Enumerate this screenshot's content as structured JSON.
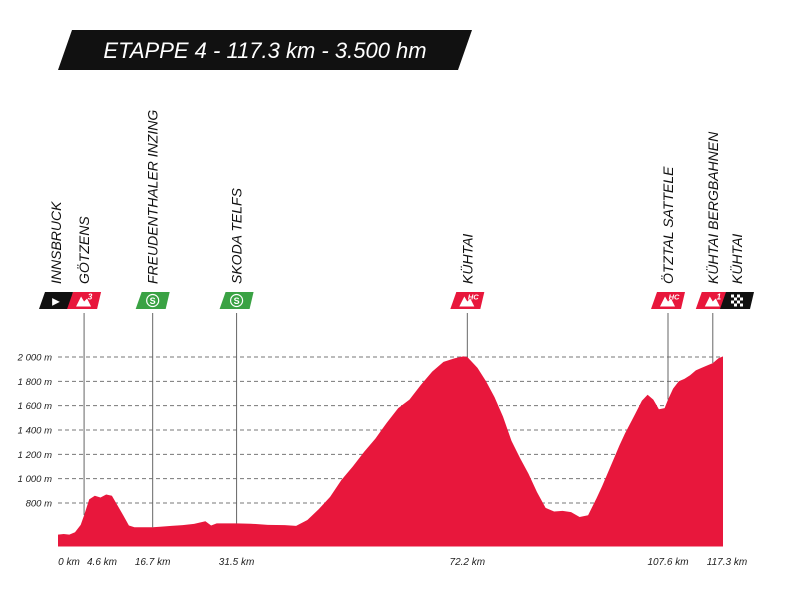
{
  "banner": {
    "text": "ETAPPE 4 - 117.3 km - 3.500 hm",
    "bg_color": "#111111",
    "text_color": "#ffffff"
  },
  "colors": {
    "profile": "#e8173c",
    "kom": "#e8173c",
    "sprint": "#3aa244",
    "start": "#111111",
    "line": "#666666"
  },
  "chart_data": {
    "type": "area",
    "xlabel": "",
    "ylabel": "",
    "xlim": [
      0,
      117.3
    ],
    "ylim": [
      450,
      2100
    ],
    "grid": true,
    "yticks": [
      {
        "value": 2000,
        "label": "2 000 m"
      },
      {
        "value": 1800,
        "label": "1 800 m"
      },
      {
        "value": 1600,
        "label": "1 600 m"
      },
      {
        "value": 1400,
        "label": "1 400 m"
      },
      {
        "value": 1200,
        "label": "1 200 m"
      },
      {
        "value": 1000,
        "label": "1 000 m"
      },
      {
        "value": 800,
        "label": "800 m"
      }
    ],
    "xticks": [
      {
        "value": 0,
        "label": "0 km"
      },
      {
        "value": 4.6,
        "label": "4.6 km"
      },
      {
        "value": 16.7,
        "label": "16.7 km"
      },
      {
        "value": 31.5,
        "label": "31.5 km"
      },
      {
        "value": 72.2,
        "label": "72.2 km"
      },
      {
        "value": 107.6,
        "label": "107.6 km"
      },
      {
        "value": 117.3,
        "label": "117.3 km"
      }
    ],
    "profile": {
      "x": [
        0,
        1,
        2,
        3,
        4,
        4.6,
        5.5,
        6.5,
        7.5,
        8.5,
        9.5,
        10.5,
        11.5,
        12.5,
        13.5,
        14.5,
        16.7,
        18,
        20,
        22,
        24,
        26,
        27,
        28,
        30,
        31.5,
        34,
        37,
        40,
        42,
        44,
        46,
        48,
        50,
        52,
        54,
        56,
        58,
        60,
        62,
        64,
        66,
        68,
        70,
        71.5,
        72.2,
        73,
        74,
        75.5,
        77,
        78.5,
        80,
        81.5,
        83,
        84.5,
        86,
        87.5,
        89,
        90.5,
        92,
        93.5,
        95,
        96,
        97,
        98,
        99,
        100,
        101,
        102,
        103,
        104,
        105,
        106,
        107,
        107.6,
        108.5,
        109.5,
        110.5,
        111.5,
        112.5,
        113.5,
        114.5,
        115.5,
        116.5,
        117.3
      ],
      "y": [
        540,
        545,
        540,
        560,
        620,
        700,
        830,
        860,
        845,
        870,
        860,
        780,
        700,
        615,
        600,
        600,
        600,
        605,
        612,
        618,
        628,
        650,
        615,
        632,
        632,
        632,
        630,
        620,
        618,
        612,
        660,
        750,
        850,
        990,
        1100,
        1220,
        1330,
        1460,
        1580,
        1650,
        1770,
        1880,
        1960,
        1990,
        2005,
        2000,
        1960,
        1910,
        1800,
        1670,
        1510,
        1310,
        1170,
        1040,
        890,
        760,
        730,
        735,
        725,
        685,
        700,
        840,
        940,
        1050,
        1160,
        1270,
        1370,
        1460,
        1550,
        1640,
        1690,
        1650,
        1570,
        1580,
        1650,
        1740,
        1800,
        1820,
        1850,
        1890,
        1910,
        1930,
        1950,
        1990,
        2005
      ]
    },
    "markers": [
      {
        "km": 0,
        "name": "INNSBRUCK",
        "icon": "start-flag-icon",
        "badge": "▶",
        "color": "#111111"
      },
      {
        "km": 4.6,
        "name": "GÖTZENS",
        "icon": "mountain-cat3-icon",
        "badge": "3",
        "color": "#e8173c"
      },
      {
        "km": 16.7,
        "name": "FREUDENTHALER INZING",
        "icon": "sprint-icon",
        "badge": "S",
        "color": "#3aa244"
      },
      {
        "km": 31.5,
        "name": "SKODA TELFS",
        "icon": "sprint-icon",
        "badge": "S",
        "color": "#3aa244"
      },
      {
        "km": 72.2,
        "name": "KÜHTAI",
        "icon": "mountain-hc-icon",
        "badge": "HC",
        "color": "#e8173c"
      },
      {
        "km": 107.6,
        "name": "ÖTZTAL SATTELE",
        "icon": "mountain-hc-icon",
        "badge": "HC",
        "color": "#e8173c"
      },
      {
        "km": 115.5,
        "name": "KÜHTAI BERGBAHNEN",
        "icon": "mountain-cat1-icon",
        "badge": "1",
        "color": "#e8173c"
      },
      {
        "km": 117.3,
        "name": "KÜHTAI",
        "icon": "finish-flag-icon",
        "badge": "",
        "color": "#111111"
      }
    ]
  }
}
